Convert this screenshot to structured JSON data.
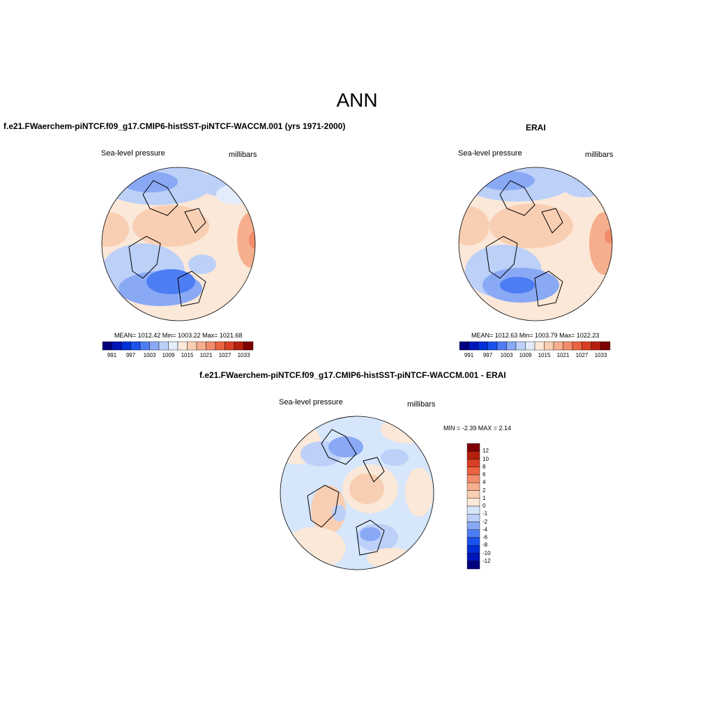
{
  "page_title": "ANN",
  "left_panel": {
    "title": "f.e21.FWaerchem-piNTCF.f09_g17.CMIP6-histSST-piNTCF-WACCM.001 (yrs 1971-2000)",
    "variable": "Sea-level pressure",
    "units": "millibars",
    "stats": "MEAN= 1012.42  Min= 1003.22  Max= 1021.68"
  },
  "right_panel": {
    "title": "ERAI",
    "variable": "Sea-level pressure",
    "units": "millibars",
    "stats": "MEAN= 1012.63  Min= 1003.79  Max= 1022.23"
  },
  "diff_panel": {
    "title": "f.e21.FWaerchem-piNTCF.f09_g17.CMIP6-histSST-piNTCF-WACCM.001 - ERAI",
    "variable": "Sea-level pressure",
    "units": "millibars",
    "stats": "MIN =  -2.39 MAX =   2.14"
  },
  "colorbar_abs": {
    "colors": [
      "#00007f",
      "#0015b8",
      "#0030d8",
      "#1a52ee",
      "#4d7df3",
      "#8aa9f5",
      "#bcd0f8",
      "#e2ecfb",
      "#fbe8d8",
      "#f9cfb3",
      "#f5ae8e",
      "#f18c6a",
      "#ea6341",
      "#d93f24",
      "#b51f0e",
      "#7e0000"
    ],
    "tick_labels": [
      "991",
      "997",
      "1003",
      "1009",
      "1015",
      "1021",
      "1027",
      "1033"
    ]
  },
  "colorbar_diff": {
    "colors": [
      "#7e0000",
      "#b51f0e",
      "#d93f24",
      "#ea6341",
      "#f18c6a",
      "#f5ae8e",
      "#f9cfb3",
      "#fbe8d8",
      "#d6e6fb",
      "#bcd0f8",
      "#8aa9f5",
      "#4d7df3",
      "#1a52ee",
      "#0030d8",
      "#0015b8",
      "#00007f"
    ],
    "tick_labels": [
      "12",
      "10",
      "8",
      "6",
      "4",
      "2",
      "1",
      "0",
      "-1",
      "-2",
      "-4",
      "-6",
      "-8",
      "-10",
      "-12"
    ]
  }
}
